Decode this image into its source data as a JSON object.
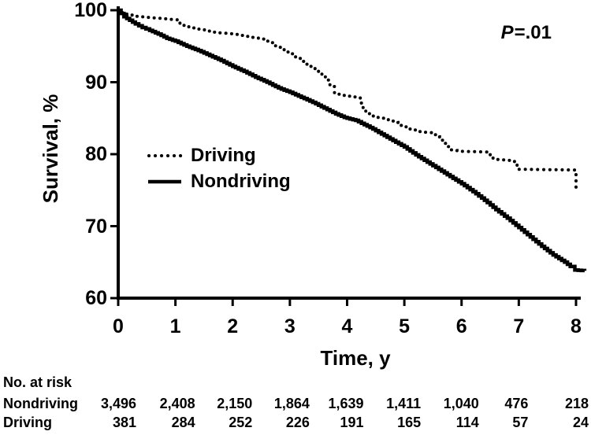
{
  "chart_data": {
    "type": "line",
    "subtype": "kaplan-meier-survival",
    "xlabel": "Time, y",
    "ylabel": "Survival, %",
    "p_value_italic": "P",
    "p_value_rest": "=.01",
    "xlim": [
      0,
      8
    ],
    "ylim": [
      60,
      100
    ],
    "x_ticks": [
      0,
      1,
      2,
      3,
      4,
      5,
      6,
      7,
      8
    ],
    "y_ticks": [
      100,
      90,
      80,
      70,
      60
    ],
    "grid": false,
    "legend_position": "inside-left-middle",
    "series": [
      {
        "name": "Driving",
        "style": "dotted",
        "points": [
          [
            0,
            100
          ],
          [
            0.07,
            99.6
          ],
          [
            0.25,
            99.2
          ],
          [
            0.5,
            99.0
          ],
          [
            0.75,
            98.85
          ],
          [
            0.98,
            98.7
          ],
          [
            1.08,
            98.1
          ],
          [
            1.18,
            97.7
          ],
          [
            1.45,
            97.3
          ],
          [
            1.62,
            97.0
          ],
          [
            1.83,
            96.8
          ],
          [
            2.0,
            96.7
          ],
          [
            2.15,
            96.5
          ],
          [
            2.3,
            96.3
          ],
          [
            2.45,
            96.1
          ],
          [
            2.55,
            95.9
          ],
          [
            2.65,
            95.5
          ],
          [
            2.75,
            95.0
          ],
          [
            2.85,
            94.7
          ],
          [
            2.95,
            94.2
          ],
          [
            3.05,
            93.7
          ],
          [
            3.15,
            93.3
          ],
          [
            3.25,
            92.5
          ],
          [
            3.38,
            91.9
          ],
          [
            3.5,
            91.2
          ],
          [
            3.62,
            90.3
          ],
          [
            3.7,
            89.4
          ],
          [
            3.78,
            88.4
          ],
          [
            3.98,
            88.1
          ],
          [
            4.18,
            87.9
          ],
          [
            4.28,
            86.3
          ],
          [
            4.42,
            85.3
          ],
          [
            4.6,
            85.0
          ],
          [
            4.78,
            84.6
          ],
          [
            5.0,
            83.8
          ],
          [
            5.2,
            83.2
          ],
          [
            5.42,
            83.0
          ],
          [
            5.55,
            82.4
          ],
          [
            5.68,
            81.5
          ],
          [
            5.8,
            80.6
          ],
          [
            5.92,
            80.4
          ],
          [
            6.45,
            80.3
          ],
          [
            6.55,
            79.3
          ],
          [
            6.88,
            79.1
          ],
          [
            6.97,
            77.9
          ],
          [
            7.99,
            77.8
          ],
          [
            8.0,
            75.4
          ]
        ]
      },
      {
        "name": "Nondriving",
        "style": "solid",
        "points": [
          [
            0,
            100
          ],
          [
            0.1,
            99.1
          ],
          [
            0.2,
            98.6
          ],
          [
            0.3,
            98.1
          ],
          [
            0.42,
            97.6
          ],
          [
            0.55,
            97.2
          ],
          [
            0.7,
            96.7
          ],
          [
            0.85,
            96.1
          ],
          [
            1.0,
            95.7
          ],
          [
            1.2,
            95.0
          ],
          [
            1.4,
            94.4
          ],
          [
            1.6,
            93.7
          ],
          [
            1.8,
            93.0
          ],
          [
            2.0,
            92.2
          ],
          [
            2.2,
            91.5
          ],
          [
            2.4,
            90.7
          ],
          [
            2.6,
            90.0
          ],
          [
            2.8,
            89.2
          ],
          [
            3.0,
            88.6
          ],
          [
            3.2,
            87.9
          ],
          [
            3.4,
            87.2
          ],
          [
            3.6,
            86.4
          ],
          [
            3.8,
            85.6
          ],
          [
            3.95,
            85.1
          ],
          [
            4.15,
            84.7
          ],
          [
            4.3,
            84.1
          ],
          [
            4.45,
            83.5
          ],
          [
            4.6,
            82.8
          ],
          [
            4.8,
            81.9
          ],
          [
            5.0,
            81.0
          ],
          [
            5.2,
            79.9
          ],
          [
            5.4,
            78.9
          ],
          [
            5.6,
            77.9
          ],
          [
            5.8,
            76.9
          ],
          [
            6.0,
            75.9
          ],
          [
            6.2,
            74.8
          ],
          [
            6.4,
            73.6
          ],
          [
            6.6,
            72.3
          ],
          [
            6.8,
            71.1
          ],
          [
            7.0,
            69.8
          ],
          [
            7.2,
            68.5
          ],
          [
            7.4,
            67.2
          ],
          [
            7.6,
            66.0
          ],
          [
            7.8,
            65.0
          ],
          [
            7.9,
            64.4
          ],
          [
            7.98,
            63.9
          ],
          [
            8.15,
            63.8
          ]
        ]
      }
    ],
    "risk_table": {
      "header": "No. at risk",
      "rows": [
        {
          "label": "Nondriving",
          "values": [
            "3,496",
            "2,408",
            "2,150",
            "1,864",
            "1,639",
            "1,411",
            "1,040",
            "476",
            "218"
          ]
        },
        {
          "label": "Driving",
          "values": [
            "381",
            "284",
            "252",
            "226",
            "191",
            "165",
            "114",
            "57",
            "24"
          ]
        }
      ]
    },
    "colors": {
      "foreground": "#000000",
      "background": "#ffffff"
    }
  }
}
